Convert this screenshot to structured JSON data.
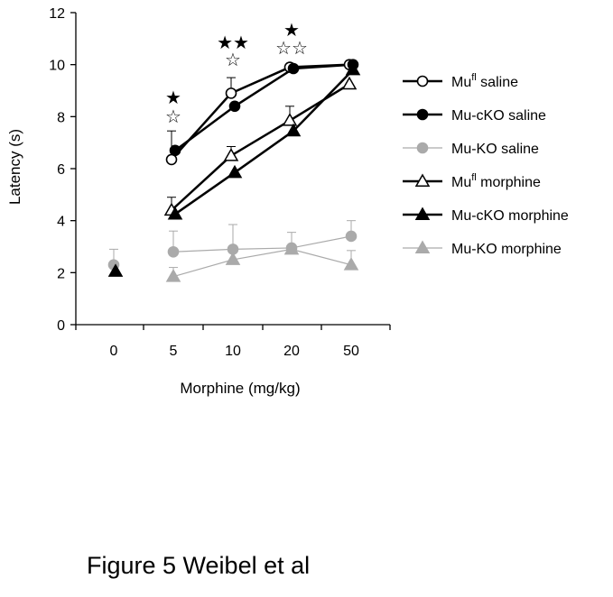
{
  "chart_data": {
    "type": "line",
    "xlabel": "Morphine (mg/kg)",
    "ylabel": "Latency (s)",
    "ylim": [
      0,
      12
    ],
    "y_ticks": [
      "0",
      "2",
      "4",
      "6",
      "8",
      "10",
      "12"
    ],
    "categories": [
      "0",
      "5",
      "10",
      "20",
      "50"
    ],
    "grid": false,
    "legend_position": "right",
    "series": [
      {
        "name": "Mufl saline",
        "base": "Mu",
        "sup": "fl",
        "rest": " saline",
        "marker": "circle",
        "fill": "#ffffff",
        "stroke": "#000000",
        "line": "#000000",
        "line_width": 2.5,
        "values": [
          null,
          6.35,
          8.9,
          9.9,
          10.0
        ],
        "errors": [
          null,
          1.1,
          0.6,
          0,
          0
        ]
      },
      {
        "name": "Mu-cKO saline",
        "base": "Mu-cKO saline",
        "sup": "",
        "rest": "",
        "marker": "circle",
        "fill": "#000000",
        "stroke": "#000000",
        "line": "#000000",
        "line_width": 2.5,
        "values": [
          null,
          6.7,
          8.4,
          9.85,
          10.0
        ],
        "errors": [
          null,
          0,
          0,
          0,
          0
        ]
      },
      {
        "name": "Mu-KO saline",
        "base": "Mu-KO saline",
        "sup": "",
        "rest": "",
        "marker": "circle",
        "fill": "#aaaaaa",
        "stroke": "#aaaaaa",
        "line": "#aaaaaa",
        "line_width": 1.2,
        "values": [
          2.3,
          2.8,
          2.9,
          2.95,
          3.4
        ],
        "errors": [
          0.6,
          0.8,
          0.95,
          0.6,
          0.6
        ]
      },
      {
        "name": "Mufl morphine",
        "base": "Mu",
        "sup": "fl",
        "rest": " morphine",
        "marker": "triangle",
        "fill": "#ffffff",
        "stroke": "#000000",
        "line": "#000000",
        "line_width": 2.5,
        "values": [
          null,
          4.4,
          6.5,
          7.85,
          9.25
        ],
        "errors": [
          null,
          0.5,
          0.35,
          0.55,
          0
        ]
      },
      {
        "name": "Mu-cKO morphine",
        "base": "Mu-cKO morphine",
        "sup": "",
        "rest": "",
        "marker": "triangle",
        "fill": "#000000",
        "stroke": "#000000",
        "line": "#000000",
        "line_width": 2.5,
        "values": [
          2.05,
          4.25,
          5.85,
          7.45,
          9.8
        ],
        "errors": [
          null,
          0,
          0,
          0,
          0
        ]
      },
      {
        "name": "Mu-KO morphine",
        "base": "Mu-KO morphine",
        "sup": "",
        "rest": "",
        "marker": "triangle",
        "fill": "#aaaaaa",
        "stroke": "#aaaaaa",
        "line": "#aaaaaa",
        "line_width": 1.2,
        "values": [
          null,
          1.85,
          2.5,
          2.9,
          2.3
        ],
        "errors": [
          null,
          0.35,
          0,
          0,
          0.55
        ]
      }
    ],
    "significance": [
      {
        "category": "5",
        "filled": 1,
        "open": 1
      },
      {
        "category": "10",
        "filled": 2,
        "open": 1
      },
      {
        "category": "20",
        "filled": 1,
        "open": 2
      }
    ],
    "star_filled": "★",
    "star_open": "☆"
  },
  "caption": "Figure 5 Weibel et al"
}
